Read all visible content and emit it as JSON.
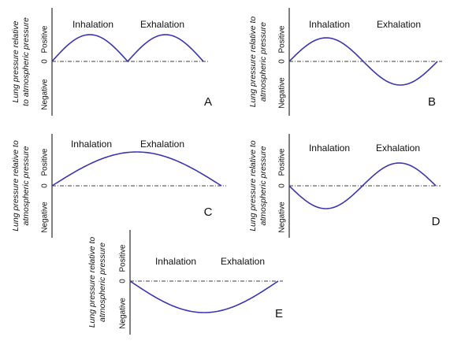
{
  "chart_data": [
    {
      "type": "line",
      "panel": "A",
      "ylabel_line1": "Lung pressure relative",
      "ylabel_line2": "to atmospheric pressure",
      "yticks": [
        "Negative",
        "0",
        "Positive"
      ],
      "phase_labels": [
        "Inhalation",
        "Exhalation"
      ],
      "x": [
        0,
        0.5,
        1,
        1.5,
        2
      ],
      "series": [
        {
          "values": [
            0,
            1,
            0,
            1,
            0
          ]
        }
      ],
      "curve": "double-positive-hump",
      "ylim": [
        -1.1,
        1.1
      ]
    },
    {
      "type": "line",
      "panel": "B",
      "ylabel_line1": "Lung pressure relative to",
      "ylabel_line2": "atmospheric pressure",
      "yticks": [
        "Negative",
        "0",
        "Positive"
      ],
      "phase_labels": [
        "Inhalation",
        "Exhalation"
      ],
      "x": [
        0,
        0.5,
        1,
        1.5,
        2
      ],
      "series": [
        {
          "values": [
            0,
            1,
            0,
            -1,
            0
          ]
        }
      ],
      "curve": "sine",
      "ylim": [
        -1.1,
        1.1
      ]
    },
    {
      "type": "line",
      "panel": "C",
      "ylabel_line1": "Lung pressure relative to",
      "ylabel_line2": "atmospheric pressure",
      "yticks": [
        "Negative",
        "0",
        "Positive"
      ],
      "phase_labels": [
        "Inhalation",
        "Exhalation"
      ],
      "x": [
        0,
        1,
        2
      ],
      "series": [
        {
          "values": [
            0,
            1,
            0
          ]
        }
      ],
      "curve": "single-positive-hump",
      "ylim": [
        -1.1,
        1.1
      ]
    },
    {
      "type": "line",
      "panel": "D",
      "ylabel_line1": "Lung pressure relative to",
      "ylabel_line2": "atmospheric pressure",
      "yticks": [
        "Negative",
        "0",
        "Positive"
      ],
      "phase_labels": [
        "Inhalation",
        "Exhalation"
      ],
      "x": [
        0,
        0.5,
        1,
        1.5,
        2
      ],
      "series": [
        {
          "values": [
            0,
            -1,
            0,
            1,
            0
          ]
        }
      ],
      "curve": "inverted-sine",
      "ylim": [
        -1.1,
        1.1
      ]
    },
    {
      "type": "line",
      "panel": "E",
      "ylabel_line1": "Lung pressure relative to",
      "ylabel_line2": "atmospheric pressure",
      "yticks": [
        "Negative",
        "0",
        "Positive"
      ],
      "phase_labels": [
        "Inhalation",
        "Exhalation"
      ],
      "x": [
        0,
        1,
        2
      ],
      "series": [
        {
          "values": [
            0,
            -1,
            0
          ]
        }
      ],
      "curve": "single-negative-hump",
      "ylim": [
        -1.1,
        1.1
      ]
    }
  ],
  "colors": {
    "curve": "#3c35b8",
    "axis": "#000000"
  }
}
